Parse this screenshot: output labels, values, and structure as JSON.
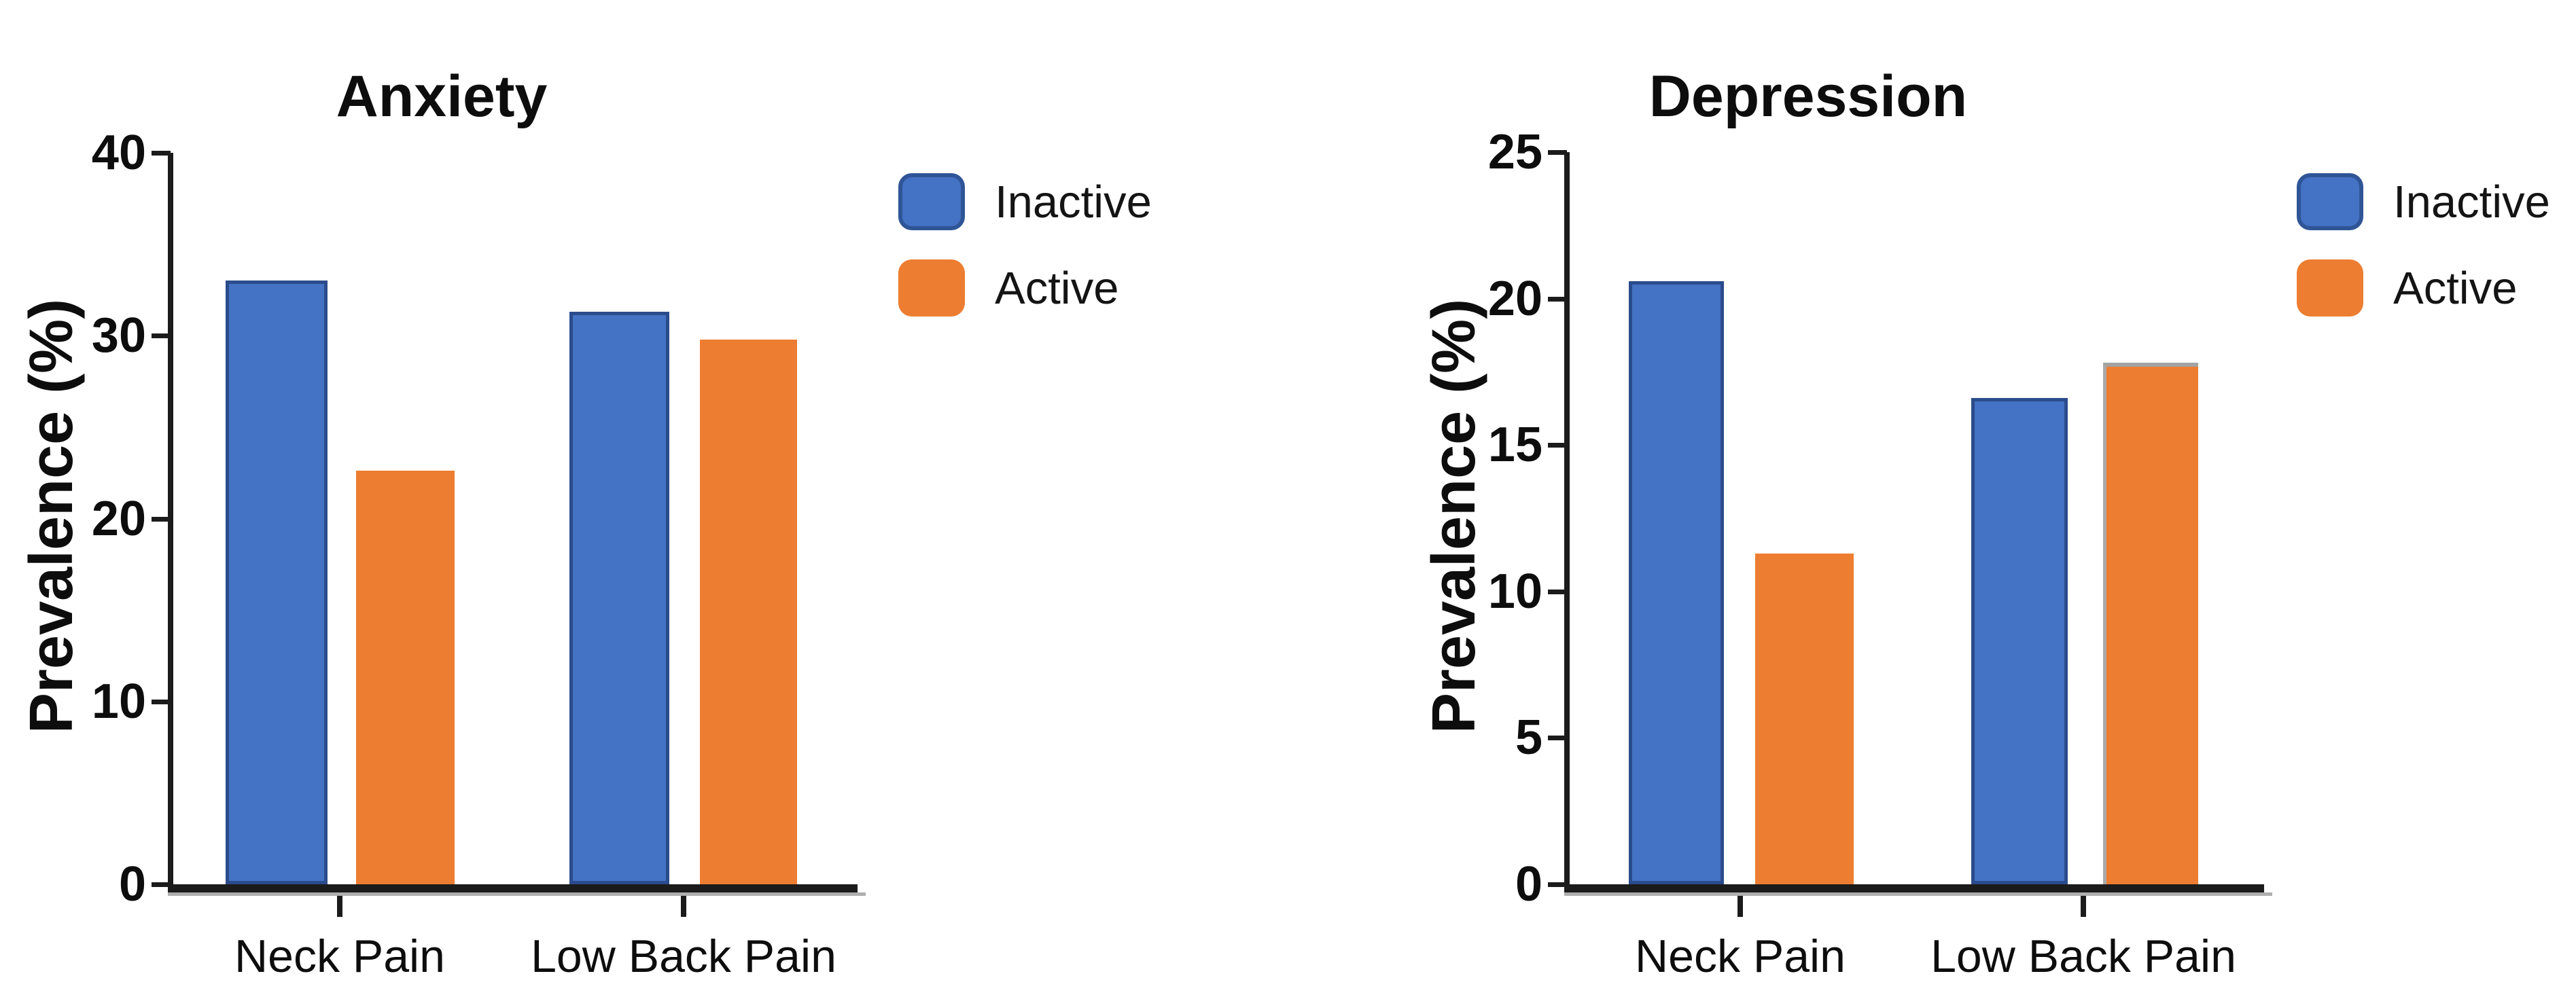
{
  "figure": {
    "background": "#ffffff"
  },
  "palette": {
    "inactive_fill": "#4472C4",
    "inactive_border": "#2B4C8C",
    "active_fill": "#ED7D31",
    "axis_color": "#1b1b1b"
  },
  "chart_data": [
    {
      "type": "bar",
      "title": "Anxiety",
      "ylabel": "Prevalence (%)",
      "xlabel": "",
      "ylim": [
        0,
        40
      ],
      "yticks": [
        0,
        10,
        20,
        30,
        40
      ],
      "categories": [
        "Neck Pain",
        "Low Back Pain"
      ],
      "series": [
        {
          "name": "Inactive",
          "color": "#4472C4",
          "values": [
            33.0,
            31.3
          ]
        },
        {
          "name": "Active",
          "color": "#ED7D31",
          "values": [
            22.6,
            29.8
          ]
        }
      ],
      "legend_position": "right-of-plot",
      "grid": false
    },
    {
      "type": "bar",
      "title": "Depression",
      "ylabel": "Prevalence (%)",
      "xlabel": "",
      "ylim": [
        0,
        25
      ],
      "yticks": [
        0,
        5,
        10,
        15,
        20,
        25
      ],
      "categories": [
        "Neck Pain",
        "Low Back Pain"
      ],
      "series": [
        {
          "name": "Inactive",
          "color": "#4472C4",
          "values": [
            20.6,
            16.6
          ]
        },
        {
          "name": "Active",
          "color": "#ED7D31",
          "values": [
            11.3,
            17.8
          ]
        }
      ],
      "legend_position": "right-of-plot",
      "grid": false
    }
  ]
}
